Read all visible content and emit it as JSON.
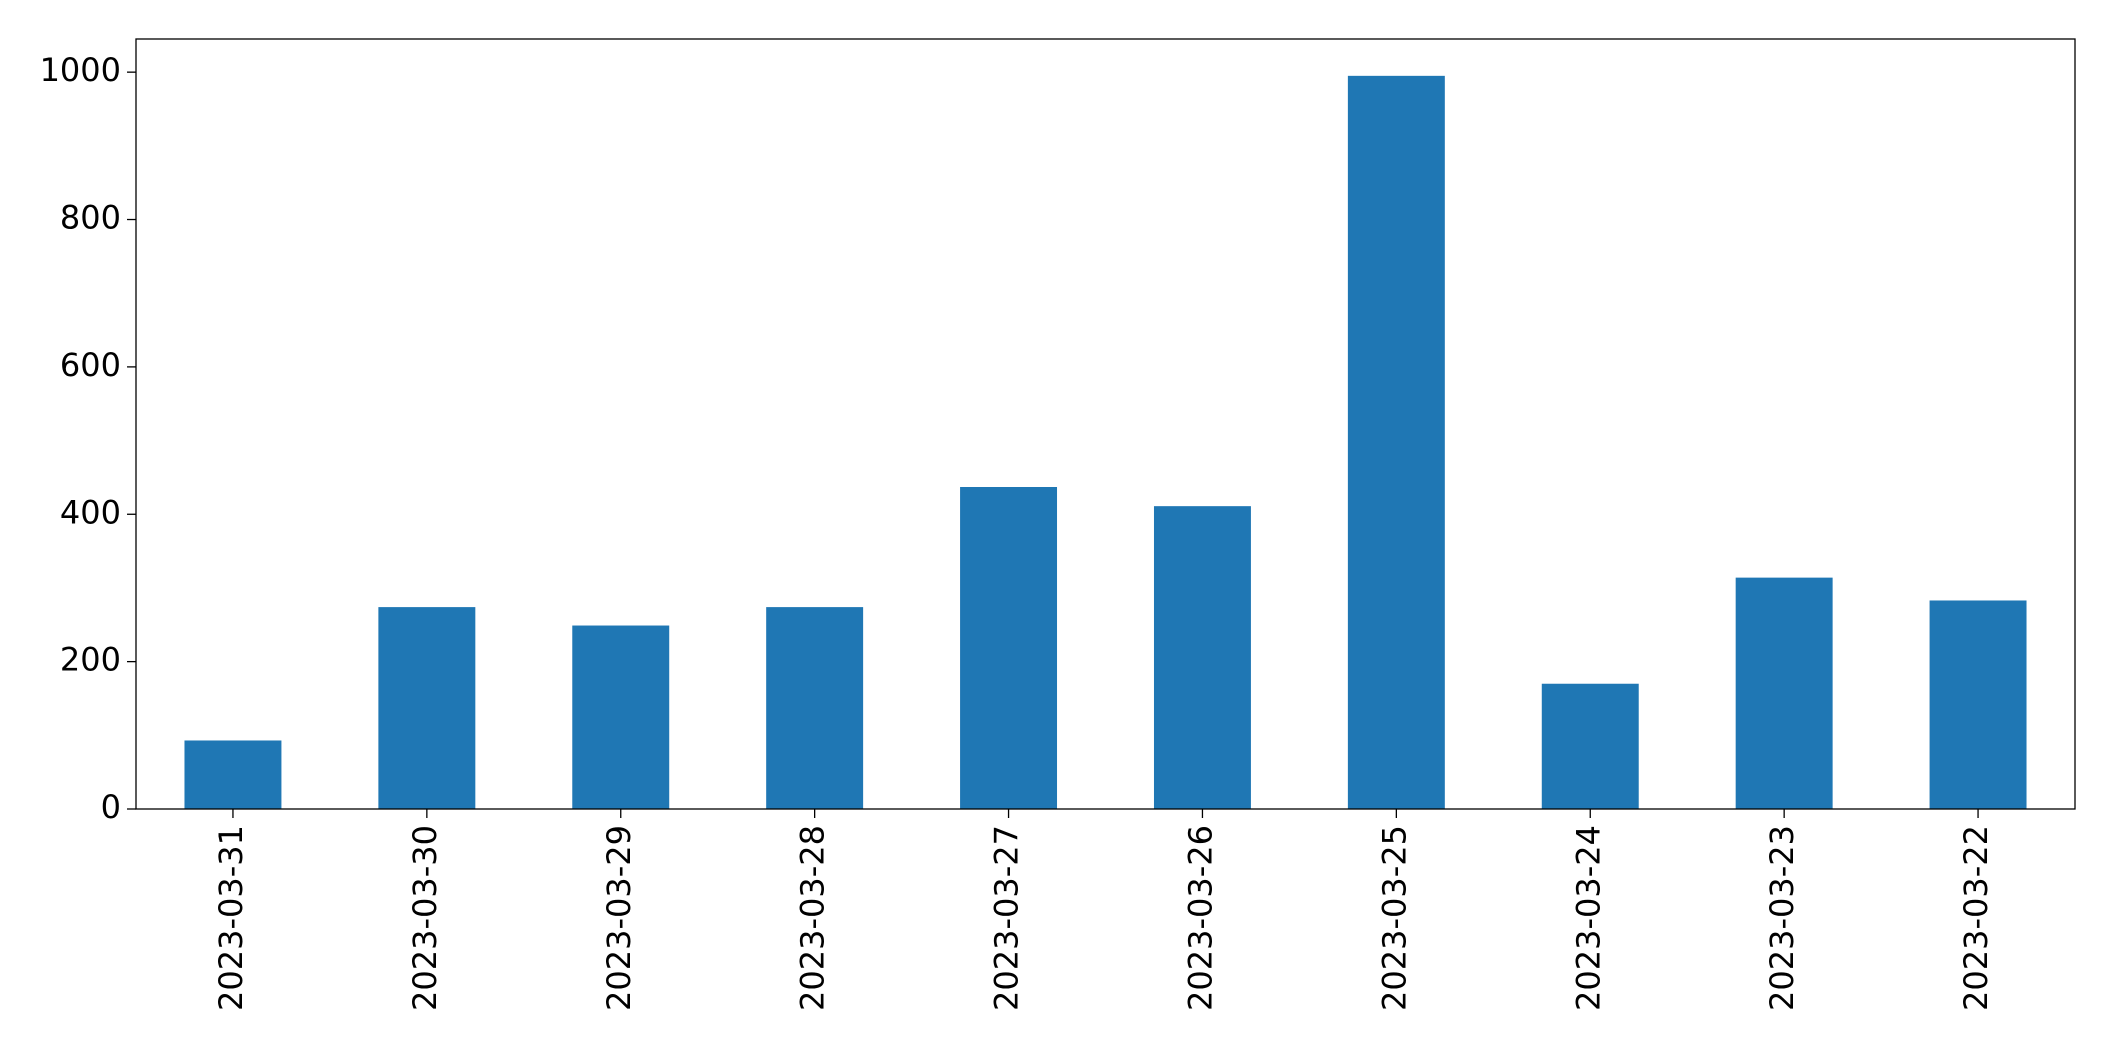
{
  "chart_data": {
    "type": "bar",
    "categories": [
      "2023-03-31",
      "2023-03-30",
      "2023-03-29",
      "2023-03-28",
      "2023-03-27",
      "2023-03-26",
      "2023-03-25",
      "2023-03-24",
      "2023-03-23",
      "2023-03-22"
    ],
    "values": [
      93,
      274,
      249,
      274,
      437,
      411,
      995,
      170,
      314,
      283
    ],
    "color": "#1f77b4",
    "ylim": [
      0,
      1045
    ],
    "yticks": [
      0,
      200,
      400,
      600,
      800,
      1000
    ],
    "grid": false
  }
}
